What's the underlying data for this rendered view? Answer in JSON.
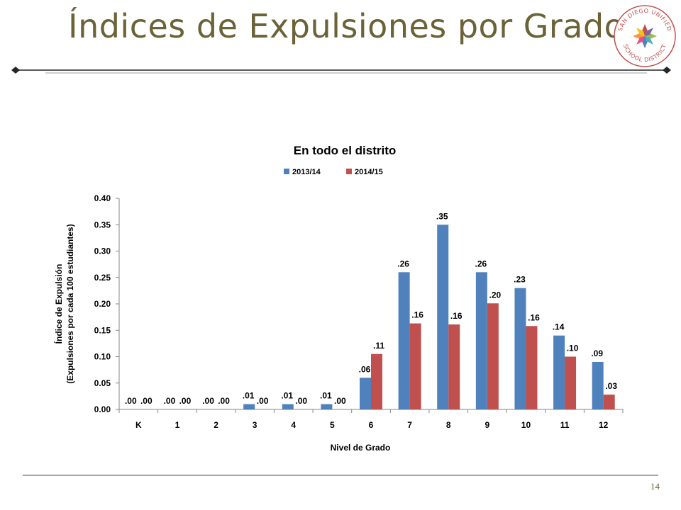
{
  "slide": {
    "title": "Índices de Expulsiones por Grados",
    "page_number": "14"
  },
  "logo": {
    "name": "san-diego-unified-school-district-logo",
    "text_top": "SAN DIEGO UNIFIED",
    "text_bottom": "SCHOOL DISTRICT"
  },
  "colors": {
    "title": "#6b6238",
    "series_2013": "#4f81bd",
    "series_2014": "#c0504d",
    "axis": "#868686",
    "rule": "#595959"
  },
  "chart_data": {
    "type": "bar",
    "title": "En todo el distrito",
    "xlabel": "Nivel de Grado",
    "ylabel_lines": [
      "Índice de Expulsión",
      "(Expulsiones por cada 100 estudiantes)"
    ],
    "categories": [
      "K",
      "1",
      "2",
      "3",
      "4",
      "5",
      "6",
      "7",
      "8",
      "9",
      "10",
      "11",
      "12"
    ],
    "ylim": [
      0,
      0.4
    ],
    "yticks": [
      "0.00",
      "0.05",
      "0.10",
      "0.15",
      "0.20",
      "0.25",
      "0.30",
      "0.35",
      "0.40"
    ],
    "legend_position": "top",
    "grid": false,
    "series": [
      {
        "name": "2013/14",
        "values": [
          0,
          0,
          0,
          0.01,
          0.01,
          0.01,
          0.06,
          0.26,
          0.35,
          0.26,
          0.23,
          0.14,
          0.09
        ],
        "labels": [
          ".00",
          ".00",
          ".00",
          ".01",
          ".01",
          ".01",
          ".06",
          ".26",
          ".35",
          ".26",
          ".23",
          ".14",
          ".09"
        ]
      },
      {
        "name": "2014/15",
        "values": [
          0,
          0,
          0,
          0,
          0,
          0,
          0.105,
          0.163,
          0.161,
          0.201,
          0.158,
          0.1,
          0.028
        ],
        "labels": [
          ".00",
          ".00",
          ".00",
          ".00",
          ".00",
          ".00",
          ".11",
          ".16",
          ".16",
          ".20",
          ".16",
          ".10",
          ".03"
        ]
      }
    ]
  }
}
